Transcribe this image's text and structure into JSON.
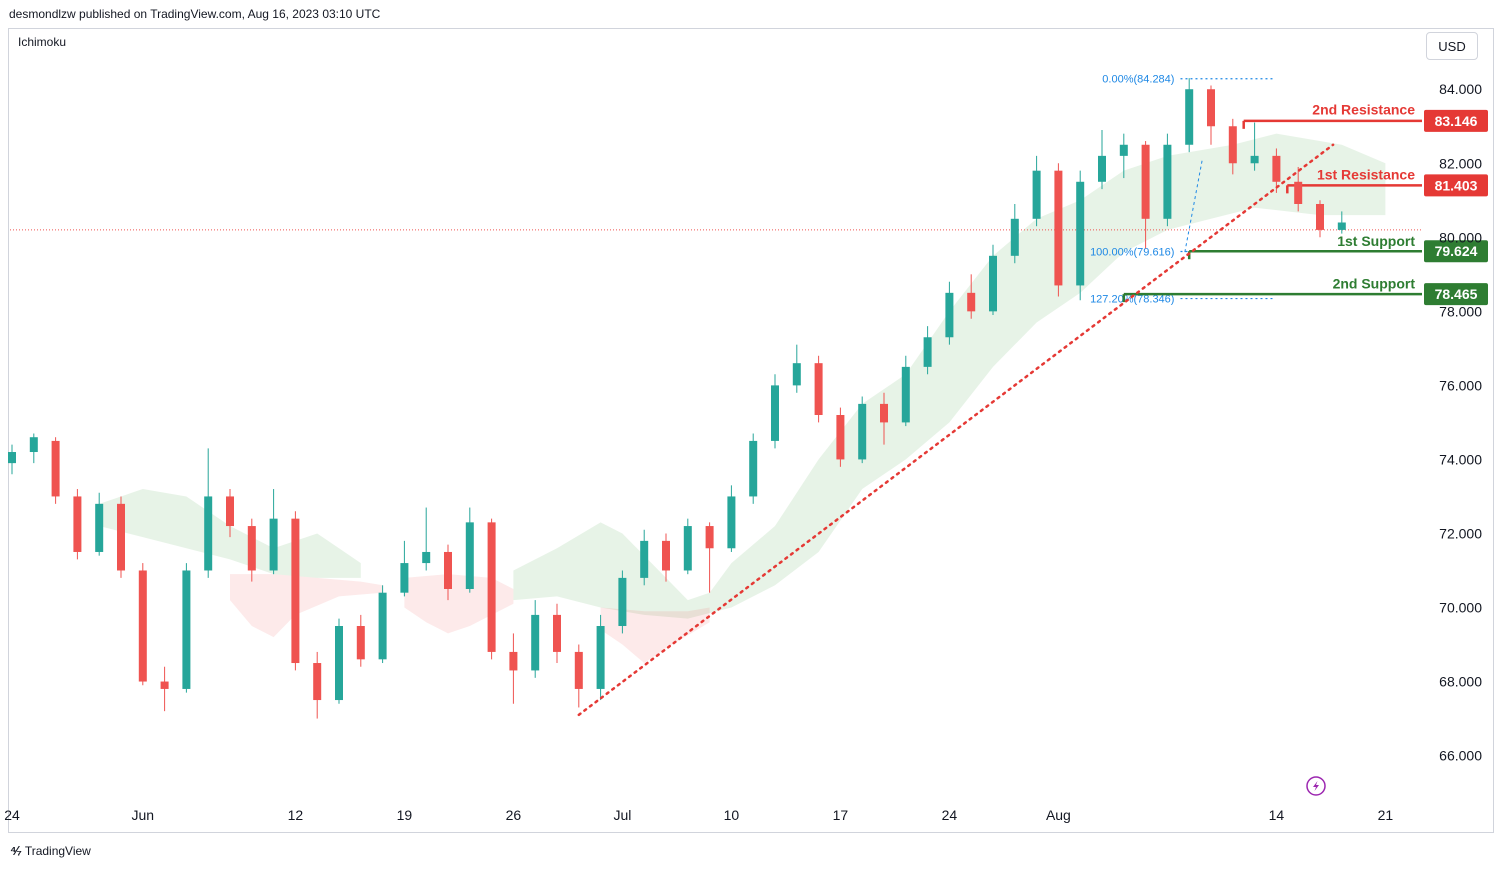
{
  "header": {
    "published": "desmondlzw published on TradingView.com, Aug 16, 2023 03:10 UTC"
  },
  "indicator": {
    "name": "Ichimoku"
  },
  "currency": {
    "label": "USD"
  },
  "footer": {
    "brand": "TradingView"
  },
  "colors": {
    "bull": "#26a69a",
    "bear": "#ef5350",
    "resistance": "#e53935",
    "support": "#2e7d32",
    "fib": "#1e88e5"
  },
  "chart_data": {
    "type": "candlestick",
    "ylim": [
      64.8,
      85.6
    ],
    "y_ticks": [
      "66.000",
      "68.000",
      "70.000",
      "72.000",
      "74.000",
      "76.000",
      "78.000",
      "80.000",
      "82.000",
      "84.000"
    ],
    "x_ticks": [
      {
        "label": "24",
        "i": 0
      },
      {
        "label": "Jun",
        "i": 6
      },
      {
        "label": "12",
        "i": 13
      },
      {
        "label": "19",
        "i": 18
      },
      {
        "label": "26",
        "i": 23
      },
      {
        "label": "Jul",
        "i": 28
      },
      {
        "label": "10",
        "i": 33
      },
      {
        "label": "17",
        "i": 38
      },
      {
        "label": "24",
        "i": 43
      },
      {
        "label": "Aug",
        "i": 48
      },
      {
        "label": "14",
        "i": 58
      },
      {
        "label": "21",
        "i": 63
      }
    ],
    "close_path": [
      [
        0,
        74.2
      ],
      [
        1,
        74.6
      ],
      [
        2,
        73.0
      ],
      [
        3,
        71.5
      ],
      [
        4,
        72.8
      ],
      [
        5,
        71.0
      ],
      [
        6,
        68.0
      ],
      [
        7,
        67.8
      ],
      [
        8,
        71.0
      ],
      [
        9,
        73.0
      ],
      [
        10,
        72.2
      ],
      [
        11,
        71.0
      ],
      [
        12,
        72.4
      ],
      [
        13,
        68.5
      ],
      [
        14,
        67.5
      ],
      [
        15,
        69.5
      ],
      [
        16,
        68.6
      ],
      [
        17,
        70.4
      ],
      [
        18,
        71.2
      ],
      [
        19,
        71.5
      ],
      [
        20,
        70.5
      ],
      [
        21,
        72.3
      ],
      [
        22,
        68.8
      ],
      [
        23,
        68.3
      ],
      [
        24,
        69.8
      ],
      [
        25,
        68.8
      ],
      [
        26,
        67.8
      ],
      [
        27,
        69.5
      ],
      [
        28,
        70.8
      ],
      [
        29,
        71.8
      ],
      [
        30,
        71.0
      ],
      [
        31,
        72.2
      ],
      [
        32,
        71.6
      ],
      [
        33,
        73.0
      ],
      [
        34,
        74.5
      ],
      [
        35,
        76.0
      ],
      [
        36,
        76.6
      ],
      [
        37,
        75.2
      ],
      [
        38,
        74.0
      ],
      [
        39,
        75.5
      ],
      [
        40,
        75.0
      ],
      [
        41,
        76.5
      ],
      [
        42,
        77.3
      ],
      [
        43,
        78.5
      ],
      [
        44,
        78.0
      ],
      [
        45,
        79.5
      ],
      [
        46,
        80.5
      ],
      [
        47,
        81.8
      ],
      [
        48,
        78.7
      ],
      [
        49,
        81.5
      ],
      [
        50,
        82.2
      ],
      [
        51,
        82.5
      ],
      [
        52,
        80.5
      ],
      [
        53,
        82.5
      ],
      [
        54,
        84.0
      ],
      [
        55,
        83.0
      ],
      [
        56,
        82.0
      ],
      [
        57,
        82.2
      ],
      [
        58,
        81.5
      ],
      [
        59,
        80.9
      ],
      [
        60,
        80.2
      ],
      [
        61,
        80.4
      ]
    ],
    "candles": [
      {
        "i": 0,
        "o": 73.9,
        "h": 74.4,
        "l": 73.6,
        "c": 74.2
      },
      {
        "i": 1,
        "o": 74.2,
        "h": 74.7,
        "l": 73.9,
        "c": 74.6
      },
      {
        "i": 2,
        "o": 74.5,
        "h": 74.6,
        "l": 72.8,
        "c": 73.0
      },
      {
        "i": 3,
        "o": 73.0,
        "h": 73.2,
        "l": 71.3,
        "c": 71.5
      },
      {
        "i": 4,
        "o": 71.5,
        "h": 73.1,
        "l": 71.4,
        "c": 72.8
      },
      {
        "i": 5,
        "o": 72.8,
        "h": 73.0,
        "l": 70.8,
        "c": 71.0
      },
      {
        "i": 6,
        "o": 71.0,
        "h": 71.2,
        "l": 67.9,
        "c": 68.0
      },
      {
        "i": 7,
        "o": 68.0,
        "h": 68.4,
        "l": 67.2,
        "c": 67.8
      },
      {
        "i": 8,
        "o": 67.8,
        "h": 71.2,
        "l": 67.7,
        "c": 71.0
      },
      {
        "i": 9,
        "o": 71.0,
        "h": 74.3,
        "l": 70.8,
        "c": 73.0
      },
      {
        "i": 10,
        "o": 73.0,
        "h": 73.2,
        "l": 71.9,
        "c": 72.2
      },
      {
        "i": 11,
        "o": 72.2,
        "h": 72.4,
        "l": 70.7,
        "c": 71.0
      },
      {
        "i": 12,
        "o": 71.0,
        "h": 73.2,
        "l": 70.9,
        "c": 72.4
      },
      {
        "i": 13,
        "o": 72.4,
        "h": 72.6,
        "l": 68.3,
        "c": 68.5
      },
      {
        "i": 14,
        "o": 68.5,
        "h": 68.8,
        "l": 67.0,
        "c": 67.5
      },
      {
        "i": 15,
        "o": 67.5,
        "h": 69.7,
        "l": 67.4,
        "c": 69.5
      },
      {
        "i": 16,
        "o": 69.5,
        "h": 69.8,
        "l": 68.4,
        "c": 68.6
      },
      {
        "i": 17,
        "o": 68.6,
        "h": 70.6,
        "l": 68.5,
        "c": 70.4
      },
      {
        "i": 18,
        "o": 70.4,
        "h": 71.8,
        "l": 70.3,
        "c": 71.2
      },
      {
        "i": 19,
        "o": 71.2,
        "h": 72.7,
        "l": 71.0,
        "c": 71.5
      },
      {
        "i": 20,
        "o": 71.5,
        "h": 71.7,
        "l": 70.2,
        "c": 70.5
      },
      {
        "i": 21,
        "o": 70.5,
        "h": 72.7,
        "l": 70.4,
        "c": 72.3
      },
      {
        "i": 22,
        "o": 72.3,
        "h": 72.4,
        "l": 68.6,
        "c": 68.8
      },
      {
        "i": 23,
        "o": 68.8,
        "h": 69.3,
        "l": 67.4,
        "c": 68.3
      },
      {
        "i": 24,
        "o": 68.3,
        "h": 70.2,
        "l": 68.1,
        "c": 69.8
      },
      {
        "i": 25,
        "o": 69.8,
        "h": 70.1,
        "l": 68.5,
        "c": 68.8
      },
      {
        "i": 26,
        "o": 68.8,
        "h": 69.0,
        "l": 67.3,
        "c": 67.8
      },
      {
        "i": 27,
        "o": 67.8,
        "h": 69.8,
        "l": 67.5,
        "c": 69.5
      },
      {
        "i": 28,
        "o": 69.5,
        "h": 71.0,
        "l": 69.3,
        "c": 70.8
      },
      {
        "i": 29,
        "o": 70.8,
        "h": 72.1,
        "l": 70.6,
        "c": 71.8
      },
      {
        "i": 30,
        "o": 71.8,
        "h": 72.0,
        "l": 70.7,
        "c": 71.0
      },
      {
        "i": 31,
        "o": 71.0,
        "h": 72.4,
        "l": 70.9,
        "c": 72.2
      },
      {
        "i": 32,
        "o": 72.2,
        "h": 72.3,
        "l": 70.4,
        "c": 71.6
      },
      {
        "i": 33,
        "o": 71.6,
        "h": 73.3,
        "l": 71.5,
        "c": 73.0
      },
      {
        "i": 34,
        "o": 73.0,
        "h": 74.7,
        "l": 72.8,
        "c": 74.5
      },
      {
        "i": 35,
        "o": 74.5,
        "h": 76.3,
        "l": 74.3,
        "c": 76.0
      },
      {
        "i": 36,
        "o": 76.0,
        "h": 77.1,
        "l": 75.8,
        "c": 76.6
      },
      {
        "i": 37,
        "o": 76.6,
        "h": 76.8,
        "l": 75.0,
        "c": 75.2
      },
      {
        "i": 38,
        "o": 75.2,
        "h": 75.4,
        "l": 73.8,
        "c": 74.0
      },
      {
        "i": 39,
        "o": 74.0,
        "h": 75.7,
        "l": 73.9,
        "c": 75.5
      },
      {
        "i": 40,
        "o": 75.5,
        "h": 75.8,
        "l": 74.4,
        "c": 75.0
      },
      {
        "i": 41,
        "o": 75.0,
        "h": 76.8,
        "l": 74.9,
        "c": 76.5
      },
      {
        "i": 42,
        "o": 76.5,
        "h": 77.6,
        "l": 76.3,
        "c": 77.3
      },
      {
        "i": 43,
        "o": 77.3,
        "h": 78.8,
        "l": 77.1,
        "c": 78.5
      },
      {
        "i": 44,
        "o": 78.5,
        "h": 79.0,
        "l": 77.8,
        "c": 78.0
      },
      {
        "i": 45,
        "o": 78.0,
        "h": 79.8,
        "l": 77.9,
        "c": 79.5
      },
      {
        "i": 46,
        "o": 79.5,
        "h": 80.9,
        "l": 79.3,
        "c": 80.5
      },
      {
        "i": 47,
        "o": 80.5,
        "h": 82.2,
        "l": 80.3,
        "c": 81.8
      },
      {
        "i": 48,
        "o": 81.8,
        "h": 82.0,
        "l": 78.4,
        "c": 78.7
      },
      {
        "i": 49,
        "o": 78.7,
        "h": 81.8,
        "l": 78.3,
        "c": 81.5
      },
      {
        "i": 50,
        "o": 81.5,
        "h": 82.9,
        "l": 81.3,
        "c": 82.2
      },
      {
        "i": 51,
        "o": 82.2,
        "h": 82.8,
        "l": 81.6,
        "c": 82.5
      },
      {
        "i": 52,
        "o": 82.5,
        "h": 82.6,
        "l": 79.7,
        "c": 80.5
      },
      {
        "i": 53,
        "o": 80.5,
        "h": 82.8,
        "l": 80.3,
        "c": 82.5
      },
      {
        "i": 54,
        "o": 82.5,
        "h": 84.3,
        "l": 82.3,
        "c": 84.0
      },
      {
        "i": 55,
        "o": 84.0,
        "h": 84.1,
        "l": 82.5,
        "c": 83.0
      },
      {
        "i": 56,
        "o": 83.0,
        "h": 83.2,
        "l": 81.7,
        "c": 82.0
      },
      {
        "i": 57,
        "o": 82.0,
        "h": 83.1,
        "l": 81.8,
        "c": 82.2
      },
      {
        "i": 58,
        "o": 82.2,
        "h": 82.4,
        "l": 81.2,
        "c": 81.5
      },
      {
        "i": 59,
        "o": 81.5,
        "h": 81.9,
        "l": 80.7,
        "c": 80.9
      },
      {
        "i": 60,
        "o": 80.9,
        "h": 81.0,
        "l": 80.0,
        "c": 80.2
      },
      {
        "i": 61,
        "o": 80.2,
        "h": 80.7,
        "l": 80.1,
        "c": 80.4
      }
    ],
    "ichimoku_cloud_green": [
      [
        [
          4,
          72.8
        ],
        [
          6,
          73.2
        ],
        [
          8,
          73.0
        ],
        [
          10,
          72.2
        ],
        [
          12,
          71.6
        ],
        [
          13,
          71.8
        ],
        [
          14,
          72.0
        ],
        [
          15,
          71.6
        ],
        [
          16,
          71.2
        ],
        [
          16,
          70.8
        ],
        [
          14,
          70.8
        ],
        [
          12,
          70.9
        ],
        [
          10,
          71.3
        ],
        [
          8,
          71.6
        ],
        [
          6,
          71.9
        ],
        [
          4,
          72.2
        ]
      ],
      [
        [
          23,
          71.0
        ],
        [
          25,
          71.6
        ],
        [
          27,
          72.3
        ],
        [
          28,
          72.0
        ],
        [
          30,
          70.8
        ],
        [
          31,
          70.2
        ],
        [
          32,
          70.4
        ],
        [
          33,
          71.2
        ],
        [
          35,
          72.2
        ],
        [
          37,
          74.0
        ],
        [
          39,
          75.5
        ],
        [
          41,
          76.3
        ],
        [
          43,
          78.0
        ],
        [
          45,
          79.5
        ],
        [
          47,
          80.5
        ],
        [
          49,
          81.0
        ],
        [
          51,
          81.8
        ],
        [
          53,
          82.2
        ],
        [
          56,
          82.5
        ],
        [
          58,
          82.8
        ],
        [
          61,
          82.5
        ],
        [
          63,
          82.0
        ],
        [
          63,
          80.6
        ],
        [
          60,
          80.6
        ],
        [
          57,
          80.8
        ],
        [
          55,
          80.5
        ],
        [
          53,
          80.2
        ],
        [
          51,
          79.6
        ],
        [
          49,
          78.5
        ],
        [
          47,
          77.7
        ],
        [
          45,
          76.5
        ],
        [
          43,
          75.0
        ],
        [
          41,
          74.0
        ],
        [
          39,
          73.2
        ],
        [
          37,
          71.5
        ],
        [
          35,
          70.6
        ],
        [
          33,
          70.0
        ],
        [
          31,
          69.7
        ],
        [
          29,
          69.8
        ],
        [
          27,
          70.0
        ],
        [
          25,
          70.3
        ],
        [
          23,
          70.2
        ]
      ]
    ],
    "ichimoku_cloud_red": [
      [
        [
          10,
          70.9
        ],
        [
          12,
          70.9
        ],
        [
          14,
          70.8
        ],
        [
          16,
          70.7
        ],
        [
          17,
          70.6
        ],
        [
          17,
          70.4
        ],
        [
          15,
          70.3
        ],
        [
          13,
          69.8
        ],
        [
          12,
          69.2
        ],
        [
          11,
          69.5
        ],
        [
          10,
          70.2
        ]
      ],
      [
        [
          18,
          70.8
        ],
        [
          20,
          70.9
        ],
        [
          22,
          70.8
        ],
        [
          23,
          70.5
        ],
        [
          23,
          70.1
        ],
        [
          21,
          69.5
        ],
        [
          20,
          69.3
        ],
        [
          19,
          69.6
        ],
        [
          18,
          70.0
        ]
      ],
      [
        [
          27,
          70.0
        ],
        [
          29,
          69.9
        ],
        [
          31,
          69.9
        ],
        [
          32,
          70.0
        ],
        [
          32,
          69.6
        ],
        [
          30,
          68.9
        ],
        [
          29,
          68.5
        ],
        [
          28,
          69.0
        ],
        [
          27,
          69.4
        ]
      ]
    ],
    "trendline": {
      "from": [
        26,
        67.1
      ],
      "to": [
        60.6,
        82.5
      ]
    },
    "current_price": 80.2,
    "levels": [
      {
        "label": "2nd Resistance",
        "value": "83.146",
        "y": 83.146,
        "from_i": 56.5,
        "kind": "resistance",
        "label_y": 83.45
      },
      {
        "label": "1st Resistance",
        "value": "81.403",
        "y": 81.403,
        "from_i": 58.5,
        "kind": "resistance",
        "label_y": 81.7
      },
      {
        "label": "1st Support",
        "value": "79.624",
        "y": 79.624,
        "from_i": 54.0,
        "kind": "support",
        "label_y": 79.9
      },
      {
        "label": "2nd Support",
        "value": "78.465",
        "y": 78.465,
        "from_i": 51.0,
        "kind": "support",
        "label_y": 78.75
      }
    ],
    "fib": [
      {
        "label": "0.00%(84.284)",
        "y": 84.284
      },
      {
        "label": "100.00%(79.616)",
        "y": 79.616
      },
      {
        "label": "127.20%(78.346)",
        "y": 78.346
      }
    ],
    "fib_line": {
      "from": [
        53.8,
        79.6
      ],
      "to": [
        54.6,
        82.1
      ]
    }
  }
}
